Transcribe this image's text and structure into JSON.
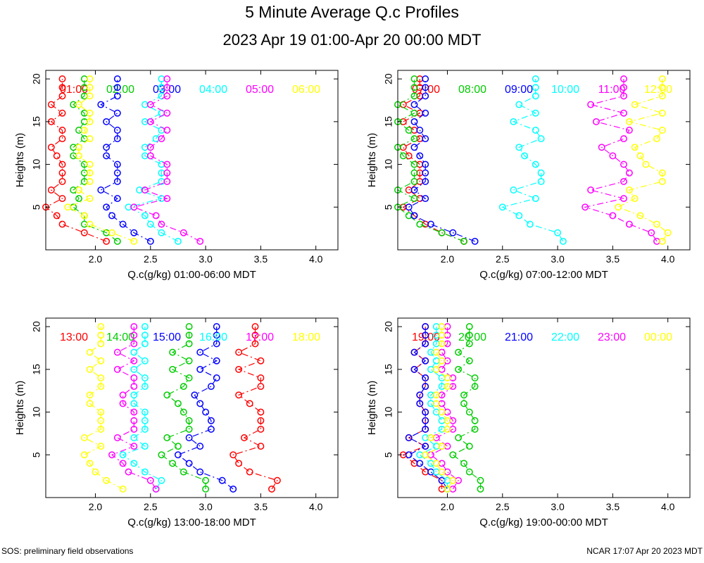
{
  "title": "5 Minute Average Q.c Profiles",
  "subtitle": "2023 Apr 19 01:00-Apr 20 00:00 MDT",
  "footer_left": "SOS: preliminary field observations",
  "footer_right": "NCAR 17:07 Apr 20 2023 MDT",
  "chart_data": [
    {
      "type": "line",
      "xlabel": "Q.c(g/kg) 01:00-06:00 MDT",
      "ylabel": "Heights (m)",
      "xlim": [
        1.55,
        4.2
      ],
      "ylim": [
        0,
        21
      ],
      "xticks": [
        "2.0",
        "2.5",
        "3.0",
        "3.5",
        "4.0"
      ],
      "yticks": [
        "5",
        "10",
        "15",
        "20"
      ],
      "heights": [
        1,
        2,
        3,
        4,
        5,
        6,
        7,
        8,
        9,
        10,
        11,
        12,
        13,
        14,
        15,
        16,
        17,
        18,
        19,
        20
      ],
      "series": [
        {
          "name": "01:00",
          "color": "#ff0000",
          "values": [
            2.1,
            1.9,
            1.7,
            1.65,
            1.55,
            1.7,
            1.6,
            1.7,
            1.7,
            1.7,
            1.65,
            1.6,
            1.7,
            1.7,
            1.6,
            1.7,
            1.6,
            1.7,
            1.7,
            1.7
          ]
        },
        {
          "name": "02:00",
          "color": "#00cc00",
          "values": [
            2.2,
            2.1,
            1.9,
            1.9,
            1.8,
            1.85,
            1.8,
            1.9,
            1.9,
            1.9,
            1.8,
            1.8,
            1.9,
            1.85,
            1.9,
            1.9,
            1.8,
            1.9,
            1.9,
            1.9
          ]
        },
        {
          "name": "03:00",
          "color": "#0000ff",
          "values": [
            2.5,
            2.35,
            2.25,
            2.15,
            2.1,
            2.2,
            2.05,
            2.2,
            2.2,
            2.2,
            2.1,
            2.1,
            2.2,
            2.2,
            2.1,
            2.2,
            2.05,
            2.2,
            2.2,
            2.2
          ]
        },
        {
          "name": "04:00",
          "color": "#00ffff",
          "values": [
            2.75,
            2.6,
            2.5,
            2.45,
            2.3,
            2.6,
            2.4,
            2.6,
            2.6,
            2.6,
            2.45,
            2.45,
            2.55,
            2.6,
            2.45,
            2.6,
            2.45,
            2.6,
            2.6,
            2.6
          ]
        },
        {
          "name": "05:00",
          "color": "#ff00ff",
          "values": [
            2.95,
            2.8,
            2.6,
            2.55,
            2.35,
            2.65,
            2.45,
            2.65,
            2.65,
            2.65,
            2.5,
            2.5,
            2.6,
            2.65,
            2.5,
            2.65,
            2.5,
            2.65,
            2.65,
            2.65
          ]
        },
        {
          "name": "06:00",
          "color": "#ffff00",
          "values": [
            2.35,
            2.15,
            1.95,
            1.9,
            1.75,
            1.95,
            1.85,
            1.95,
            1.95,
            1.95,
            1.85,
            1.85,
            1.95,
            1.9,
            1.95,
            1.95,
            1.85,
            1.95,
            1.95,
            1.95
          ]
        }
      ]
    },
    {
      "type": "line",
      "xlabel": "Q.c(g/kg) 07:00-12:00 MDT",
      "ylabel": "Heights (m)",
      "xlim": [
        1.55,
        4.2
      ],
      "ylim": [
        0,
        21
      ],
      "xticks": [
        "2.0",
        "2.5",
        "3.0",
        "3.5",
        "4.0"
      ],
      "yticks": [
        "5",
        "10",
        "15",
        "20"
      ],
      "heights": [
        1,
        2,
        3,
        4,
        5,
        6,
        7,
        8,
        9,
        10,
        11,
        12,
        13,
        14,
        15,
        16,
        17,
        18,
        19,
        20
      ],
      "series": [
        {
          "name": "07:00",
          "color": "#ff0000",
          "values": [
            2.15,
            1.95,
            1.8,
            1.7,
            1.6,
            1.75,
            1.65,
            1.75,
            1.75,
            1.75,
            1.65,
            1.6,
            1.75,
            1.7,
            1.6,
            1.75,
            1.6,
            1.75,
            1.75,
            1.75
          ]
        },
        {
          "name": "08:00",
          "color": "#00cc00",
          "values": [
            2.15,
            1.95,
            1.75,
            1.65,
            1.55,
            1.7,
            1.55,
            1.7,
            1.7,
            1.7,
            1.6,
            1.55,
            1.7,
            1.65,
            1.55,
            1.7,
            1.55,
            1.7,
            1.7,
            1.7
          ]
        },
        {
          "name": "09:00",
          "color": "#0000ff",
          "values": [
            2.25,
            2.05,
            1.85,
            1.7,
            1.65,
            1.8,
            1.7,
            1.8,
            1.8,
            1.8,
            1.75,
            1.7,
            1.8,
            1.75,
            1.7,
            1.8,
            1.7,
            1.8,
            1.8,
            1.8
          ]
        },
        {
          "name": "10:00",
          "color": "#00ffff",
          "values": [
            3.05,
            3.0,
            2.75,
            2.65,
            2.5,
            2.8,
            2.6,
            2.85,
            2.85,
            2.8,
            2.7,
            2.65,
            2.85,
            2.8,
            2.6,
            2.8,
            2.65,
            2.8,
            2.8,
            2.8
          ]
        },
        {
          "name": "11:00",
          "color": "#ff00ff",
          "values": [
            3.9,
            3.85,
            3.65,
            3.5,
            3.25,
            3.6,
            3.3,
            3.6,
            3.65,
            3.6,
            3.5,
            3.4,
            3.6,
            3.65,
            3.35,
            3.6,
            3.3,
            3.6,
            3.6,
            3.6
          ]
        },
        {
          "name": "12:00",
          "color": "#ffff00",
          "values": [
            3.95,
            4.0,
            3.9,
            3.75,
            3.55,
            3.7,
            3.65,
            3.95,
            3.95,
            3.8,
            3.75,
            3.7,
            3.9,
            3.95,
            3.65,
            3.95,
            3.7,
            3.95,
            3.95,
            3.95
          ]
        }
      ]
    },
    {
      "type": "line",
      "xlabel": "Q.c(g/kg) 13:00-18:00 MDT",
      "ylabel": "Heights (m)",
      "xlim": [
        1.55,
        4.2
      ],
      "ylim": [
        0,
        21
      ],
      "xticks": [
        "2.0",
        "2.5",
        "3.0",
        "3.5",
        "4.0"
      ],
      "yticks": [
        "5",
        "10",
        "15",
        "20"
      ],
      "heights": [
        1,
        2,
        3,
        4,
        5,
        6,
        7,
        8,
        9,
        10,
        11,
        12,
        13,
        14,
        15,
        16,
        17,
        18,
        19,
        20
      ],
      "series": [
        {
          "name": "13:00",
          "color": "#ff0000",
          "values": [
            3.6,
            3.65,
            3.4,
            3.3,
            3.25,
            3.5,
            3.35,
            3.5,
            3.5,
            3.5,
            3.4,
            3.3,
            3.5,
            3.5,
            3.3,
            3.5,
            3.3,
            3.45,
            3.45,
            3.45
          ]
        },
        {
          "name": "14:00",
          "color": "#00cc00",
          "values": [
            3.0,
            3.0,
            2.8,
            2.7,
            2.6,
            2.75,
            2.65,
            2.85,
            2.85,
            2.8,
            2.75,
            2.65,
            2.8,
            2.85,
            2.7,
            2.85,
            2.7,
            2.85,
            2.85,
            2.85
          ]
        },
        {
          "name": "15:00",
          "color": "#0000ff",
          "values": [
            3.25,
            3.15,
            2.95,
            2.85,
            2.75,
            2.95,
            2.85,
            3.05,
            3.05,
            3.0,
            2.95,
            2.9,
            3.05,
            3.1,
            2.95,
            3.1,
            2.95,
            3.1,
            3.1,
            3.1
          ]
        },
        {
          "name": "16:00",
          "color": "#00ffff",
          "values": [
            2.55,
            2.6,
            2.45,
            2.35,
            2.25,
            2.45,
            2.35,
            2.45,
            2.45,
            2.45,
            2.35,
            2.35,
            2.45,
            2.45,
            2.35,
            2.45,
            2.35,
            2.45,
            2.45,
            2.45
          ]
        },
        {
          "name": "17:00",
          "color": "#ff00ff",
          "values": [
            2.55,
            2.5,
            2.3,
            2.25,
            2.15,
            2.35,
            2.2,
            2.35,
            2.35,
            2.35,
            2.25,
            2.25,
            2.35,
            2.35,
            2.2,
            2.35,
            2.2,
            2.35,
            2.35,
            2.35
          ]
        },
        {
          "name": "18:00",
          "color": "#ffff00",
          "values": [
            2.25,
            2.1,
            2.0,
            1.95,
            1.9,
            2.05,
            1.9,
            2.05,
            2.05,
            2.05,
            1.95,
            1.95,
            2.05,
            2.05,
            1.95,
            2.05,
            1.95,
            2.05,
            2.05,
            2.05
          ]
        }
      ]
    },
    {
      "type": "line",
      "xlabel": "Q.c(g/kg) 19:00-00:00 MDT",
      "ylabel": "Heights (m)",
      "xlim": [
        1.55,
        4.2
      ],
      "ylim": [
        0,
        21
      ],
      "xticks": [
        "2.0",
        "2.5",
        "3.0",
        "3.5",
        "4.0"
      ],
      "yticks": [
        "5",
        "10",
        "15",
        "20"
      ],
      "heights": [
        1,
        2,
        3,
        4,
        5,
        6,
        7,
        8,
        9,
        10,
        11,
        12,
        13,
        14,
        15,
        16,
        17,
        18,
        19,
        20
      ],
      "series": [
        {
          "name": "19:00",
          "color": "#ff0000",
          "values": [
            1.95,
            1.95,
            1.8,
            1.7,
            1.6,
            1.8,
            1.65,
            1.8,
            1.8,
            1.8,
            1.75,
            1.75,
            1.8,
            1.8,
            1.7,
            1.8,
            1.7,
            1.8,
            1.8,
            1.8
          ]
        },
        {
          "name": "20:00",
          "color": "#00cc00",
          "values": [
            2.3,
            2.3,
            2.2,
            2.15,
            2.05,
            2.2,
            2.1,
            2.25,
            2.25,
            2.2,
            2.15,
            2.15,
            2.25,
            2.25,
            2.1,
            2.2,
            2.1,
            2.2,
            2.2,
            2.2
          ]
        },
        {
          "name": "21:00",
          "color": "#0000ff",
          "values": [
            2.0,
            1.95,
            1.85,
            1.75,
            1.65,
            1.8,
            1.65,
            1.8,
            1.8,
            1.8,
            1.75,
            1.75,
            1.8,
            1.8,
            1.7,
            1.8,
            1.7,
            1.8,
            1.8,
            1.8
          ]
        },
        {
          "name": "22:00",
          "color": "#00ffff",
          "values": [
            2.0,
            2.0,
            1.9,
            1.85,
            1.75,
            1.9,
            1.8,
            1.95,
            1.95,
            1.9,
            1.85,
            1.85,
            1.95,
            1.95,
            1.85,
            1.9,
            1.85,
            1.9,
            1.9,
            1.9
          ]
        },
        {
          "name": "23:00",
          "color": "#ff00ff",
          "values": [
            2.05,
            2.1,
            2.0,
            1.95,
            1.85,
            2.0,
            1.9,
            2.05,
            2.05,
            2.0,
            1.95,
            1.95,
            2.05,
            2.05,
            1.95,
            2.0,
            1.95,
            2.0,
            2.0,
            2.0
          ]
        },
        {
          "name": "00:00",
          "color": "#ffff00",
          "values": [
            2.0,
            2.05,
            1.95,
            1.9,
            1.8,
            1.95,
            1.85,
            2.0,
            2.0,
            1.95,
            1.9,
            1.9,
            2.0,
            2.0,
            1.9,
            1.95,
            1.9,
            1.95,
            1.95,
            1.95
          ]
        }
      ]
    }
  ]
}
